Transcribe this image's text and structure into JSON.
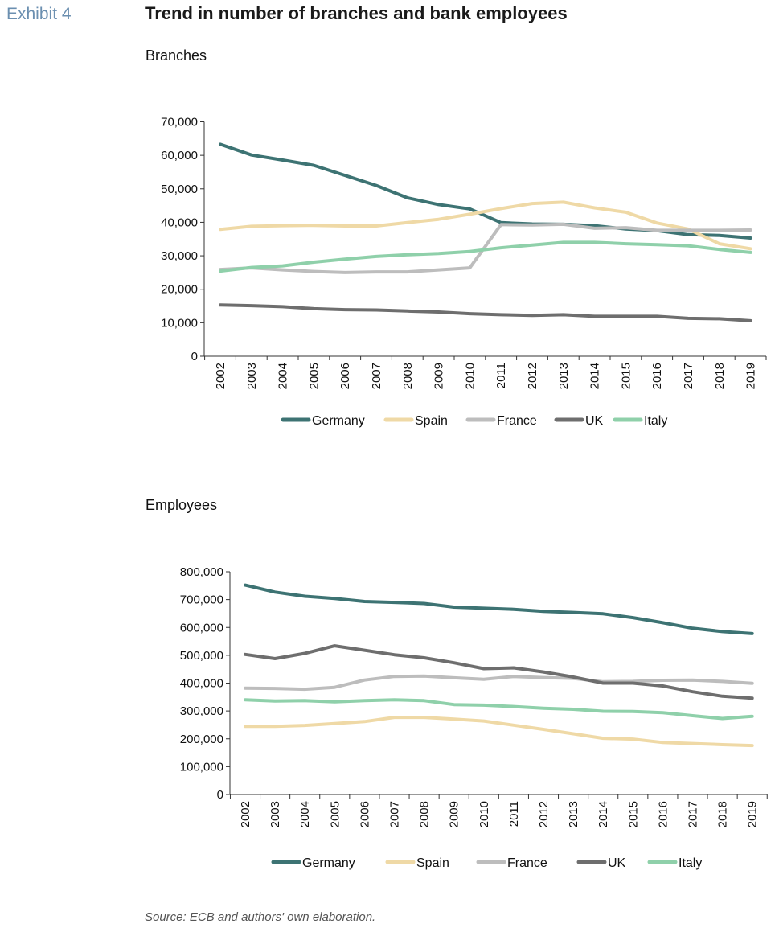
{
  "header": {
    "exhibit": "Exhibit 4",
    "title": "Trend in number of branches and bank employees"
  },
  "footer": {
    "source": "Source: ECB and authors' own elaboration."
  },
  "colors": {
    "Germany": "#3d7373",
    "Spain": "#efd9a6",
    "France": "#bdbdbd",
    "UK": "#6e6e6e",
    "Italy": "#8fd0aa",
    "axis": "#333333"
  },
  "chart_data": [
    {
      "type": "line",
      "title": "Branches",
      "x": [
        "2002",
        "2003",
        "2004",
        "2005",
        "2006",
        "2007",
        "2008",
        "2009",
        "2010",
        "2011",
        "2012",
        "2013",
        "2014",
        "2015",
        "2016",
        "2017",
        "2018",
        "2019"
      ],
      "ylim": [
        0,
        70000
      ],
      "yticks": [
        0,
        10000,
        20000,
        30000,
        40000,
        50000,
        60000,
        70000
      ],
      "ytick_labels": [
        "0",
        "10,000",
        "20,000",
        "30,000",
        "40,000",
        "50,000",
        "60,000",
        "70,000"
      ],
      "legend_position": "bottom",
      "series": [
        {
          "name": "Germany",
          "values": [
            63300,
            60100,
            58600,
            57000,
            54000,
            51000,
            47300,
            45300,
            44000,
            39900,
            39500,
            39400,
            39000,
            38000,
            37500,
            36300,
            36100,
            35300
          ]
        },
        {
          "name": "Spain",
          "values": [
            37900,
            38800,
            39000,
            39100,
            38900,
            38900,
            39900,
            40900,
            42400,
            44100,
            45600,
            46000,
            44300,
            43000,
            39800,
            38000,
            33600,
            32100
          ]
        },
        {
          "name": "France",
          "values": [
            25900,
            26400,
            25800,
            25300,
            25000,
            25200,
            25200,
            25800,
            26400,
            39300,
            39200,
            39400,
            38200,
            38400,
            37600,
            37600,
            37600,
            37700
          ]
        },
        {
          "name": "UK",
          "values": [
            15300,
            15100,
            14800,
            14200,
            13900,
            13800,
            13500,
            13200,
            12700,
            12400,
            12200,
            12400,
            11900,
            11900,
            11900,
            11300,
            11200,
            10600
          ]
        },
        {
          "name": "Italy",
          "values": [
            25400,
            26500,
            27000,
            28100,
            29000,
            29800,
            30300,
            30700,
            31300,
            32400,
            33200,
            34000,
            34000,
            33600,
            33300,
            33000,
            31900,
            31000
          ]
        }
      ]
    },
    {
      "type": "line",
      "title": "Employees",
      "x": [
        "2002",
        "2003",
        "2004",
        "2005",
        "2006",
        "2007",
        "2008",
        "2009",
        "2010",
        "2011",
        "2012",
        "2013",
        "2014",
        "2015",
        "2016",
        "2017",
        "2018",
        "2019"
      ],
      "ylim": [
        0,
        800000
      ],
      "yticks": [
        0,
        100000,
        200000,
        300000,
        400000,
        500000,
        600000,
        700000,
        800000
      ],
      "ytick_labels": [
        "0",
        "100,000",
        "200,000",
        "300,000",
        "400,000",
        "500,000",
        "600,000",
        "700,000",
        "800,000"
      ],
      "legend_position": "bottom",
      "series": [
        {
          "name": "Germany",
          "values": [
            752000,
            727000,
            712000,
            704000,
            693000,
            690000,
            686000,
            673000,
            669000,
            665000,
            658000,
            654000,
            649000,
            635000,
            617000,
            597000,
            585000,
            578000
          ]
        },
        {
          "name": "Spain",
          "values": [
            245000,
            245000,
            248000,
            255000,
            262000,
            277000,
            277000,
            271000,
            264000,
            249000,
            234000,
            218000,
            202000,
            199000,
            187000,
            183000,
            179000,
            176000
          ]
        },
        {
          "name": "France",
          "values": [
            382000,
            381000,
            378000,
            385000,
            411000,
            424000,
            425000,
            419000,
            414000,
            424000,
            420000,
            417000,
            405000,
            406000,
            410000,
            411000,
            406000,
            399000
          ]
        },
        {
          "name": "UK",
          "values": [
            503000,
            488000,
            507000,
            534000,
            518000,
            502000,
            491000,
            473000,
            452000,
            455000,
            440000,
            422000,
            400000,
            400000,
            390000,
            369000,
            353000,
            346000
          ]
        },
        {
          "name": "Italy",
          "values": [
            340000,
            336000,
            337000,
            333000,
            337000,
            340000,
            337000,
            323000,
            321000,
            316000,
            310000,
            306000,
            299000,
            298000,
            294000,
            283000,
            273000,
            281000
          ]
        }
      ]
    }
  ]
}
